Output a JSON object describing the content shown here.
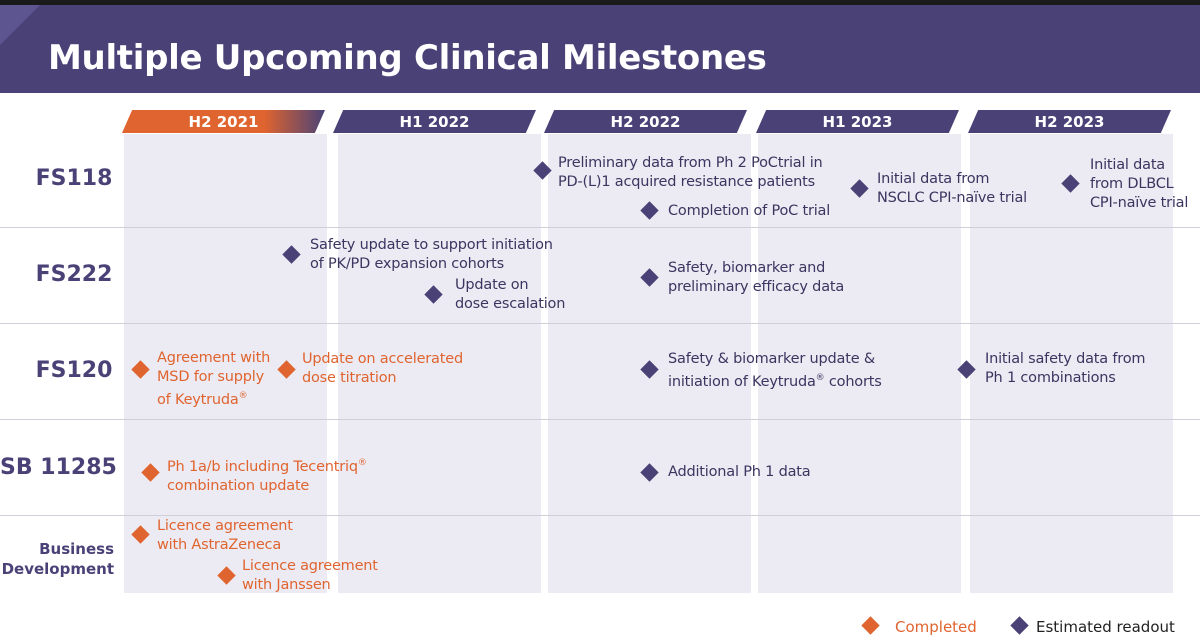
{
  "title": "Multiple Upcoming Clinical Milestones",
  "columns": [
    "H2 2021",
    "H1 2022",
    "H2 2022",
    "H1 2023",
    "H2 2023"
  ],
  "rows": [
    "FS118",
    "FS222",
    "FS120",
    "SB 11285",
    "Business Development"
  ],
  "row_lines": {
    "business_1": "Business",
    "business_2": "Development"
  },
  "milestones": {
    "fs118_a": [
      "Preliminary data from Ph 2 PoCtrial in",
      "PD-(L)1 acquired resistance patients"
    ],
    "fs118_b": [
      "Completion of PoC trial"
    ],
    "fs118_c": [
      "Initial data from",
      "NSCLC CPI-naïve trial"
    ],
    "fs118_d": [
      "Initial data",
      "from DLBCL",
      "CPI-naïve trial"
    ],
    "fs222_a": [
      "Safety update to support initiation",
      "of PK/PD expansion cohorts"
    ],
    "fs222_b": [
      "Update on",
      "dose escalation"
    ],
    "fs222_c": [
      "Safety, biomarker and",
      "preliminary efficacy data"
    ],
    "fs120_a": [
      "Agreement with",
      "MSD for supply",
      "of Keytruda"
    ],
    "fs120_b": [
      "Update on accelerated",
      "dose titration"
    ],
    "fs120_c": [
      "Safety & biomarker update &",
      "initiation of Keytruda",
      "cohorts"
    ],
    "fs120_d": [
      "Initial safety data from",
      "Ph 1  combinations"
    ],
    "sb_a": [
      "Ph 1a/b including Tecentriq",
      "combination update"
    ],
    "sb_b": [
      "Additional Ph 1 data"
    ],
    "bd_a": [
      "Licence agreement",
      "with AstraZeneca"
    ],
    "bd_b": [
      "Licence agreement",
      "with Janssen"
    ]
  },
  "registered_mark": "®",
  "legend": {
    "completed": "Completed",
    "estimated": "Estimated readout"
  },
  "colors": {
    "purple": "#4a4277",
    "orange": "#e0642f",
    "column_bg": "#ecebf3"
  }
}
